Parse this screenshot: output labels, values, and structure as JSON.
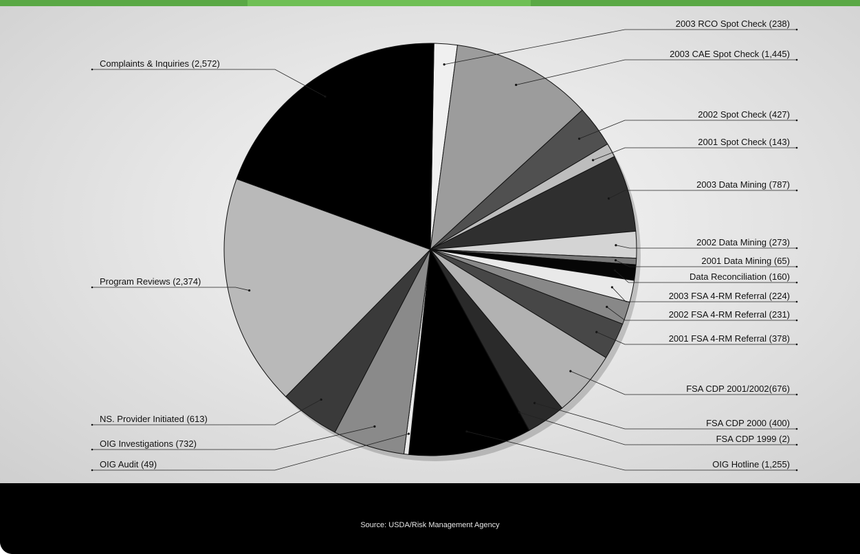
{
  "chart_data": {
    "type": "pie",
    "start_angle_deg": -89,
    "direction": "clockwise",
    "slices": [
      {
        "label": "2003 RCO Spot Check (238)",
        "value": 238,
        "color": "#f0f0f0",
        "side": "right"
      },
      {
        "label": "2003 CAE Spot Check (1,445)",
        "value": 1445,
        "color": "#9c9c9c",
        "side": "right"
      },
      {
        "label": "2002 Spot Check (427)",
        "value": 427,
        "color": "#505050",
        "side": "right"
      },
      {
        "label": "2001 Spot Check (143)",
        "value": 143,
        "color": "#bdbdbd",
        "side": "right"
      },
      {
        "label": "2003 Data Mining (787)",
        "value": 787,
        "color": "#2f2f2f",
        "side": "right"
      },
      {
        "label": "2002 Data Mining (273)",
        "value": 273,
        "color": "#d4d4d4",
        "side": "right"
      },
      {
        "label": "2001 Data Mining (65)",
        "value": 65,
        "color": "#7a7a7a",
        "side": "right"
      },
      {
        "label": "Data Reconciliation (160)",
        "value": 160,
        "color": "#060606",
        "side": "right"
      },
      {
        "label": "2003 FSA 4-RM Referral (224)",
        "value": 224,
        "color": "#e9e9e9",
        "side": "right"
      },
      {
        "label": "2002 FSA 4-RM Referral (231)",
        "value": 231,
        "color": "#888888",
        "side": "right"
      },
      {
        "label": "2001 FSA 4-RM Referral (378)",
        "value": 378,
        "color": "#474747",
        "side": "right"
      },
      {
        "label": "FSA CDP 2001/2002(676)",
        "value": 676,
        "color": "#b2b2b2",
        "side": "right"
      },
      {
        "label": "FSA CDP 2000 (400)",
        "value": 400,
        "color": "#2a2a2a",
        "side": "right"
      },
      {
        "label": "FSA CDP 1999 (2)",
        "value": 2,
        "color": "#cfcfcf",
        "side": "right"
      },
      {
        "label": "OIG Hotline (1,255)",
        "value": 1255,
        "color": "#000000",
        "side": "right"
      },
      {
        "label": "OIG Audit (49)",
        "value": 49,
        "color": "#e8e8e8",
        "side": "left"
      },
      {
        "label": "OIG Investigations (732)",
        "value": 732,
        "color": "#8a8a8a",
        "side": "left"
      },
      {
        "label": "NS. Provider Initiated (613)",
        "value": 613,
        "color": "#3a3a3a",
        "side": "left"
      },
      {
        "label": "Program Reviews (2,374)",
        "value": 2374,
        "color": "#b9b9b9",
        "side": "left"
      },
      {
        "label": "Complaints & Inquiries (2,572)",
        "value": 2572,
        "color": "#000000",
        "side": "left"
      }
    ]
  },
  "footer": {
    "source": "Source: USDA/Risk Management Agency"
  }
}
